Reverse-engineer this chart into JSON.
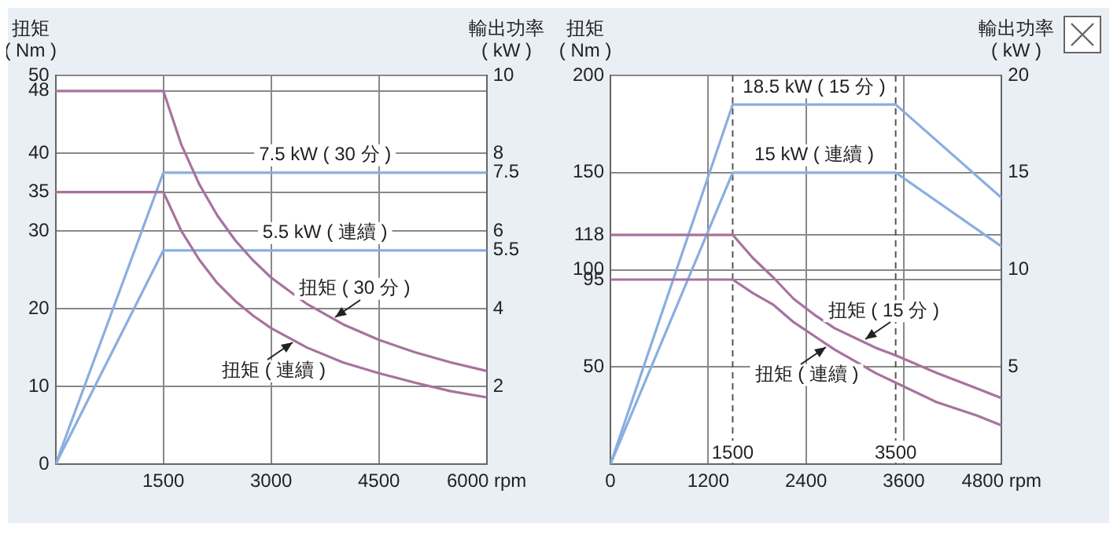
{
  "chart_data": [
    {
      "type": "line",
      "ylabel": "扭矩\n( Nm )",
      "y2label": "輸出功率\n( kW )",
      "xlim": [
        0,
        6000
      ],
      "xticks": [
        1500,
        3000,
        4500,
        {
          "value": 6000,
          "label": "6000 rpm"
        }
      ],
      "ylim": [
        0,
        50
      ],
      "yticks": [
        0,
        10,
        20,
        30,
        35,
        40,
        48,
        50
      ],
      "y2lim": [
        0,
        10
      ],
      "y2ticks": [
        2,
        4,
        5.5,
        6,
        7.5,
        8,
        10
      ],
      "series": [
        {
          "name": "扭矩 ( 30 分 )",
          "color": "#a8729e",
          "x": [
            0,
            1500,
            1750,
            2000,
            2250,
            2500,
            2750,
            3000,
            3500,
            4000,
            4500,
            5000,
            5500,
            6000
          ],
          "values": [
            48,
            48,
            41.1,
            36,
            32,
            28.8,
            26.2,
            24,
            20.6,
            18,
            16,
            14.4,
            13.1,
            12
          ]
        },
        {
          "name": "扭矩 ( 連續 )",
          "color": "#a8729e",
          "x": [
            0,
            1500,
            1750,
            2000,
            2250,
            2500,
            2750,
            3000,
            3500,
            4000,
            4500,
            5000,
            5500,
            6000
          ],
          "values": [
            35,
            35,
            30,
            26.3,
            23.3,
            21,
            19.1,
            17.5,
            15,
            13.1,
            11.7,
            10.5,
            9.4,
            8.6
          ]
        },
        {
          "name": "7.5 kW ( 30 分 )",
          "color": "#8aaee0",
          "axis": "y2",
          "x": [
            0,
            1500,
            6000
          ],
          "values": [
            0,
            7.5,
            7.5
          ]
        },
        {
          "name": "5.5 kW ( 連續 )",
          "color": "#8aaee0",
          "axis": "y2",
          "x": [
            0,
            1500,
            6000
          ],
          "values": [
            0,
            5.5,
            5.5
          ]
        }
      ],
      "grid": true,
      "legend": false,
      "marker": "none",
      "line_style": "solid"
    },
    {
      "type": "line",
      "ylabel": "扭矩\n( Nm )",
      "y2label": "輸出功率\n( kW )",
      "xlim": [
        0,
        4800
      ],
      "xticks": [
        0,
        1200,
        2400,
        3600,
        {
          "value": 4800,
          "label": "4800 rpm"
        }
      ],
      "ylim": [
        0,
        200
      ],
      "yticks": [
        50,
        95,
        100,
        118,
        150,
        200
      ],
      "y2lim": [
        0,
        20
      ],
      "y2ticks": [
        5,
        10,
        15,
        20
      ],
      "series": [
        {
          "name": "扭矩 ( 15 分 )",
          "color": "#a8729e",
          "x": [
            0,
            1500,
            1750,
            2000,
            2250,
            2500,
            2750,
            3000,
            3250,
            3500,
            4000,
            4500,
            4800
          ],
          "values": [
            118,
            118,
            106,
            96,
            85,
            77,
            70,
            65,
            60,
            56,
            47,
            39,
            34
          ]
        },
        {
          "name": "扭矩 ( 連續 )",
          "color": "#a8729e",
          "x": [
            0,
            1500,
            1750,
            2000,
            2250,
            2500,
            2750,
            3000,
            3250,
            3500,
            4000,
            4500,
            4800
          ],
          "values": [
            95,
            95,
            88,
            82,
            73,
            66,
            59,
            53,
            47,
            42,
            32,
            25,
            20
          ]
        },
        {
          "name": "18.5 kW ( 15 分 )",
          "color": "#8aaee0",
          "axis": "y2",
          "x": [
            0,
            1500,
            3500,
            4800
          ],
          "values": [
            0,
            18.5,
            18.5,
            13.7
          ]
        },
        {
          "name": "15 kW ( 連續 )",
          "color": "#8aaee0",
          "axis": "y2",
          "x": [
            0,
            1500,
            3500,
            4800
          ],
          "values": [
            0,
            15,
            15,
            11.2
          ]
        }
      ],
      "ref_lines": [
        {
          "axis": "x",
          "value": 1500,
          "label": "1500",
          "line_style": "dashed",
          "color": "#555555"
        },
        {
          "axis": "x",
          "value": 3500,
          "label": "3500",
          "line_style": "dashed",
          "color": "#555555"
        }
      ],
      "grid": true,
      "legend": false,
      "marker": "none",
      "line_style": "solid"
    }
  ]
}
